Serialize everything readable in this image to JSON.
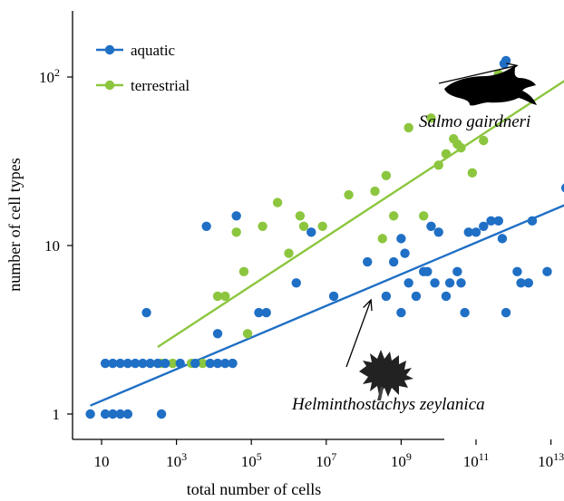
{
  "chart_data": {
    "type": "scatter",
    "xlabel": "total number of cells",
    "ylabel": "number of cell types",
    "x_scale": "log",
    "y_scale": "log",
    "xlim_log10": [
      0.6,
      14.5
    ],
    "ylim_log10": [
      -0.1,
      2.45
    ],
    "x_ticks": [
      {
        "value_log10": 1,
        "base": "10",
        "exp": ""
      },
      {
        "value_log10": 3,
        "base": "10",
        "exp": "3"
      },
      {
        "value_log10": 5,
        "base": "10",
        "exp": "5"
      },
      {
        "value_log10": 7,
        "base": "10",
        "exp": "7"
      },
      {
        "value_log10": 9,
        "base": "10",
        "exp": "9"
      },
      {
        "value_log10": 11,
        "base": "10",
        "exp": "11"
      },
      {
        "value_log10": 13,
        "base": "10",
        "exp": "13"
      }
    ],
    "y_ticks": [
      {
        "value_log10": 0,
        "base": "1",
        "exp": ""
      },
      {
        "value_log10": 1,
        "base": "10",
        "exp": ""
      },
      {
        "value_log10": 2,
        "base": "10",
        "exp": "2"
      }
    ],
    "legend_position": "top-left",
    "series": [
      {
        "name": "aquatic",
        "color": "#1f6fc5",
        "points_log10": [
          [
            0.7,
            0
          ],
          [
            1.1,
            0
          ],
          [
            1.3,
            0
          ],
          [
            1.5,
            0
          ],
          [
            1.7,
            0
          ],
          [
            2.6,
            0
          ],
          [
            1.1,
            0.301
          ],
          [
            1.3,
            0.301
          ],
          [
            1.5,
            0.301
          ],
          [
            1.7,
            0.301
          ],
          [
            1.9,
            0.301
          ],
          [
            2.1,
            0.301
          ],
          [
            2.3,
            0.301
          ],
          [
            2.5,
            0.301
          ],
          [
            2.7,
            0.301
          ],
          [
            3.1,
            0.301
          ],
          [
            3.5,
            0.301
          ],
          [
            3.9,
            0.301
          ],
          [
            4.1,
            0.301
          ],
          [
            4.3,
            0.301
          ],
          [
            4.5,
            0.301
          ],
          [
            2.2,
            0.602
          ],
          [
            4.1,
            0.477
          ],
          [
            5.2,
            0.602
          ],
          [
            5.4,
            0.602
          ],
          [
            3.8,
            1.114
          ],
          [
            4.6,
            1.176
          ],
          [
            6.2,
            0.778
          ],
          [
            6.6,
            1.079
          ],
          [
            7.2,
            0.699
          ],
          [
            8.1,
            0.903
          ],
          [
            8.6,
            0.699
          ],
          [
            8.8,
            0.903
          ],
          [
            9.0,
            0.602
          ],
          [
            9.0,
            1.041
          ],
          [
            9.1,
            0.954
          ],
          [
            9.2,
            0.778
          ],
          [
            9.4,
            0.699
          ],
          [
            9.6,
            0.845
          ],
          [
            9.7,
            0.845
          ],
          [
            9.8,
            1.114
          ],
          [
            9.9,
            0.778
          ],
          [
            10.0,
            1.079
          ],
          [
            10.2,
            0.699
          ],
          [
            10.3,
            0.778
          ],
          [
            10.5,
            0.845
          ],
          [
            10.6,
            0.778
          ],
          [
            10.7,
            0.602
          ],
          [
            10.8,
            1.079
          ],
          [
            11.0,
            1.079
          ],
          [
            11.2,
            1.114
          ],
          [
            11.4,
            1.146
          ],
          [
            11.6,
            1.146
          ],
          [
            11.7,
            1.041
          ],
          [
            11.8,
            0.602
          ],
          [
            12.1,
            0.845
          ],
          [
            12.2,
            0.778
          ],
          [
            12.4,
            0.778
          ],
          [
            12.5,
            1.146
          ],
          [
            12.9,
            0.845
          ],
          [
            13.4,
            1.342
          ],
          [
            11.75,
            2.079
          ],
          [
            11.8,
            2.097
          ]
        ],
        "fit_log10": [
          [
            0.7,
            0.05
          ],
          [
            13.4,
            1.243
          ]
        ]
      },
      {
        "name": "terrestrial",
        "color": "#8cc63f",
        "points_log10": [
          [
            2.6,
            0.301
          ],
          [
            2.9,
            0.301
          ],
          [
            3.4,
            0.301
          ],
          [
            3.7,
            0.301
          ],
          [
            4.1,
            0.699
          ],
          [
            4.3,
            0.699
          ],
          [
            4.8,
            0.845
          ],
          [
            4.9,
            0.477
          ],
          [
            4.6,
            1.079
          ],
          [
            5.3,
            1.114
          ],
          [
            5.7,
            1.255
          ],
          [
            6.0,
            0.954
          ],
          [
            6.3,
            1.176
          ],
          [
            6.4,
            1.114
          ],
          [
            6.9,
            1.114
          ],
          [
            7.6,
            1.301
          ],
          [
            8.3,
            1.322
          ],
          [
            8.5,
            1.041
          ],
          [
            8.6,
            1.415
          ],
          [
            8.8,
            1.176
          ],
          [
            9.2,
            1.699
          ],
          [
            9.6,
            1.176
          ],
          [
            9.8,
            1.756
          ],
          [
            10.0,
            1.477
          ],
          [
            10.2,
            1.544
          ],
          [
            10.4,
            1.633
          ],
          [
            10.5,
            1.602
          ],
          [
            10.6,
            1.58
          ],
          [
            10.9,
            1.431
          ],
          [
            11.2,
            1.623
          ],
          [
            11.6,
            2.017
          ],
          [
            14.2,
            2.0
          ],
          [
            14.5,
            2.301
          ]
        ],
        "fit_log10": [
          [
            2.5,
            0.398
          ],
          [
            14.3,
            2.114
          ]
        ]
      }
    ],
    "annotations": [
      {
        "text": "Salmo gairdneri",
        "silhouette": "fish-silhouette",
        "target_log10": [
          11.9,
          2.079
        ]
      },
      {
        "text": "Helminthostachys zeylanica",
        "silhouette": "fern-silhouette",
        "target_log10": [
          8.0,
          0.699
        ]
      }
    ]
  }
}
